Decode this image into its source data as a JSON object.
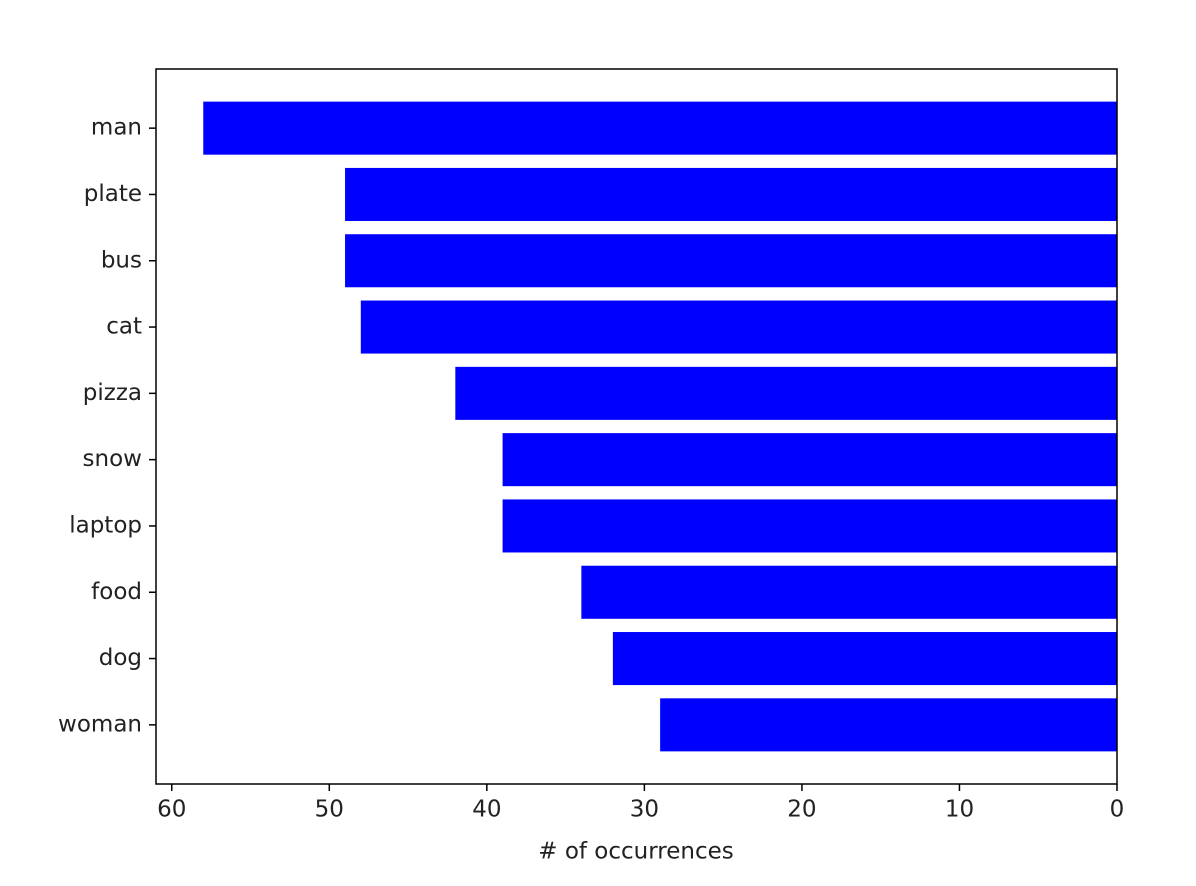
{
  "chart_data": {
    "type": "barh",
    "categories": [
      "man",
      "plate",
      "bus",
      "cat",
      "pizza",
      "snow",
      "laptop",
      "food",
      "dog",
      "woman"
    ],
    "values": [
      58,
      49,
      49,
      48,
      42,
      39,
      39,
      34,
      32,
      29
    ],
    "color": "#0000ff",
    "x_label": "# of occurrences",
    "xlim": [
      61,
      0
    ],
    "xticks": [
      60,
      50,
      40,
      30,
      20,
      10,
      0
    ],
    "grid": false
  }
}
